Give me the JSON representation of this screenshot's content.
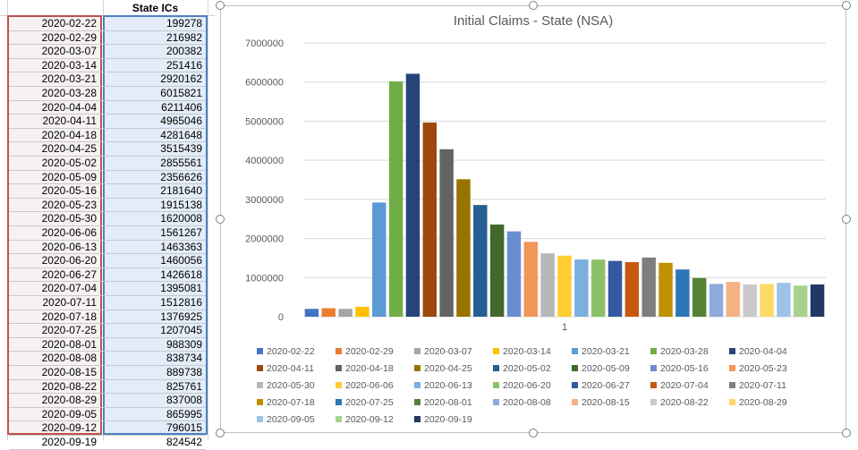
{
  "sheet": {
    "header": "State ICs",
    "rows": [
      {
        "date": "2020-02-22",
        "value": "199278"
      },
      {
        "date": "2020-02-29",
        "value": "216982"
      },
      {
        "date": "2020-03-07",
        "value": "200382"
      },
      {
        "date": "2020-03-14",
        "value": "251416"
      },
      {
        "date": "2020-03-21",
        "value": "2920162"
      },
      {
        "date": "2020-03-28",
        "value": "6015821"
      },
      {
        "date": "2020-04-04",
        "value": "6211406"
      },
      {
        "date": "2020-04-11",
        "value": "4965046"
      },
      {
        "date": "2020-04-18",
        "value": "4281648"
      },
      {
        "date": "2020-04-25",
        "value": "3515439"
      },
      {
        "date": "2020-05-02",
        "value": "2855561"
      },
      {
        "date": "2020-05-09",
        "value": "2356626"
      },
      {
        "date": "2020-05-16",
        "value": "2181640"
      },
      {
        "date": "2020-05-23",
        "value": "1915138"
      },
      {
        "date": "2020-05-30",
        "value": "1620008"
      },
      {
        "date": "2020-06-06",
        "value": "1561267"
      },
      {
        "date": "2020-06-13",
        "value": "1463363"
      },
      {
        "date": "2020-06-20",
        "value": "1460056"
      },
      {
        "date": "2020-06-27",
        "value": "1426618"
      },
      {
        "date": "2020-07-04",
        "value": "1395081"
      },
      {
        "date": "2020-07-11",
        "value": "1512816"
      },
      {
        "date": "2020-07-18",
        "value": "1376925"
      },
      {
        "date": "2020-07-25",
        "value": "1207045"
      },
      {
        "date": "2020-08-01",
        "value": "988309"
      },
      {
        "date": "2020-08-08",
        "value": "838734"
      },
      {
        "date": "2020-08-15",
        "value": "889738"
      },
      {
        "date": "2020-08-22",
        "value": "825761"
      },
      {
        "date": "2020-08-29",
        "value": "837008"
      },
      {
        "date": "2020-09-05",
        "value": "865995"
      },
      {
        "date": "2020-09-12",
        "value": "796015"
      },
      {
        "date": "2020-09-19",
        "value": "824542"
      }
    ]
  },
  "chart_data": {
    "type": "bar",
    "title": "Initial Claims - State (NSA)",
    "xlabel": "",
    "ylabel": "",
    "categories": [
      "1"
    ],
    "ylim": [
      0,
      7000000
    ],
    "yticks": [
      "0",
      "1000000",
      "2000000",
      "3000000",
      "4000000",
      "5000000",
      "6000000",
      "7000000"
    ],
    "grid": true,
    "legend_position": "bottom",
    "series": [
      {
        "name": "2020-02-22",
        "value": 199278,
        "color": "#4472c4"
      },
      {
        "name": "2020-02-29",
        "value": 216982,
        "color": "#ed7d31"
      },
      {
        "name": "2020-03-07",
        "value": 200382,
        "color": "#a5a5a5"
      },
      {
        "name": "2020-03-14",
        "value": 251416,
        "color": "#ffc000"
      },
      {
        "name": "2020-03-21",
        "value": 2920162,
        "color": "#5b9bd5"
      },
      {
        "name": "2020-03-28",
        "value": 6015821,
        "color": "#70ad47"
      },
      {
        "name": "2020-04-04",
        "value": 6211406,
        "color": "#264478"
      },
      {
        "name": "2020-04-11",
        "value": 4965046,
        "color": "#9e480e"
      },
      {
        "name": "2020-04-18",
        "value": 4281648,
        "color": "#636363"
      },
      {
        "name": "2020-04-25",
        "value": 3515439,
        "color": "#997300"
      },
      {
        "name": "2020-05-02",
        "value": 2855561,
        "color": "#255e91"
      },
      {
        "name": "2020-05-09",
        "value": 2356626,
        "color": "#43682b"
      },
      {
        "name": "2020-05-16",
        "value": 2181640,
        "color": "#698ed0"
      },
      {
        "name": "2020-05-23",
        "value": 1915138,
        "color": "#f1975a"
      },
      {
        "name": "2020-05-30",
        "value": 1620008,
        "color": "#b7b7b7"
      },
      {
        "name": "2020-06-06",
        "value": 1561267,
        "color": "#ffcd33"
      },
      {
        "name": "2020-06-13",
        "value": 1463363,
        "color": "#7cafdd"
      },
      {
        "name": "2020-06-20",
        "value": 1460056,
        "color": "#8cc168"
      },
      {
        "name": "2020-06-27",
        "value": 1426618,
        "color": "#335aa1"
      },
      {
        "name": "2020-07-04",
        "value": 1395081,
        "color": "#c65911"
      },
      {
        "name": "2020-07-11",
        "value": 1512816,
        "color": "#7e7e7e"
      },
      {
        "name": "2020-07-18",
        "value": 1376925,
        "color": "#bf9000"
      },
      {
        "name": "2020-07-25",
        "value": 1207045,
        "color": "#2e75b6"
      },
      {
        "name": "2020-08-01",
        "value": 988309,
        "color": "#548235"
      },
      {
        "name": "2020-08-08",
        "value": 838734,
        "color": "#8faadc"
      },
      {
        "name": "2020-08-15",
        "value": 889738,
        "color": "#f4b183"
      },
      {
        "name": "2020-08-22",
        "value": 825761,
        "color": "#c9c9c9"
      },
      {
        "name": "2020-08-29",
        "value": 837008,
        "color": "#ffd966"
      },
      {
        "name": "2020-09-05",
        "value": 865995,
        "color": "#9dc3e6"
      },
      {
        "name": "2020-09-12",
        "value": 796015,
        "color": "#a9d18e"
      },
      {
        "name": "2020-09-19",
        "value": 824542,
        "color": "#203864"
      }
    ]
  }
}
